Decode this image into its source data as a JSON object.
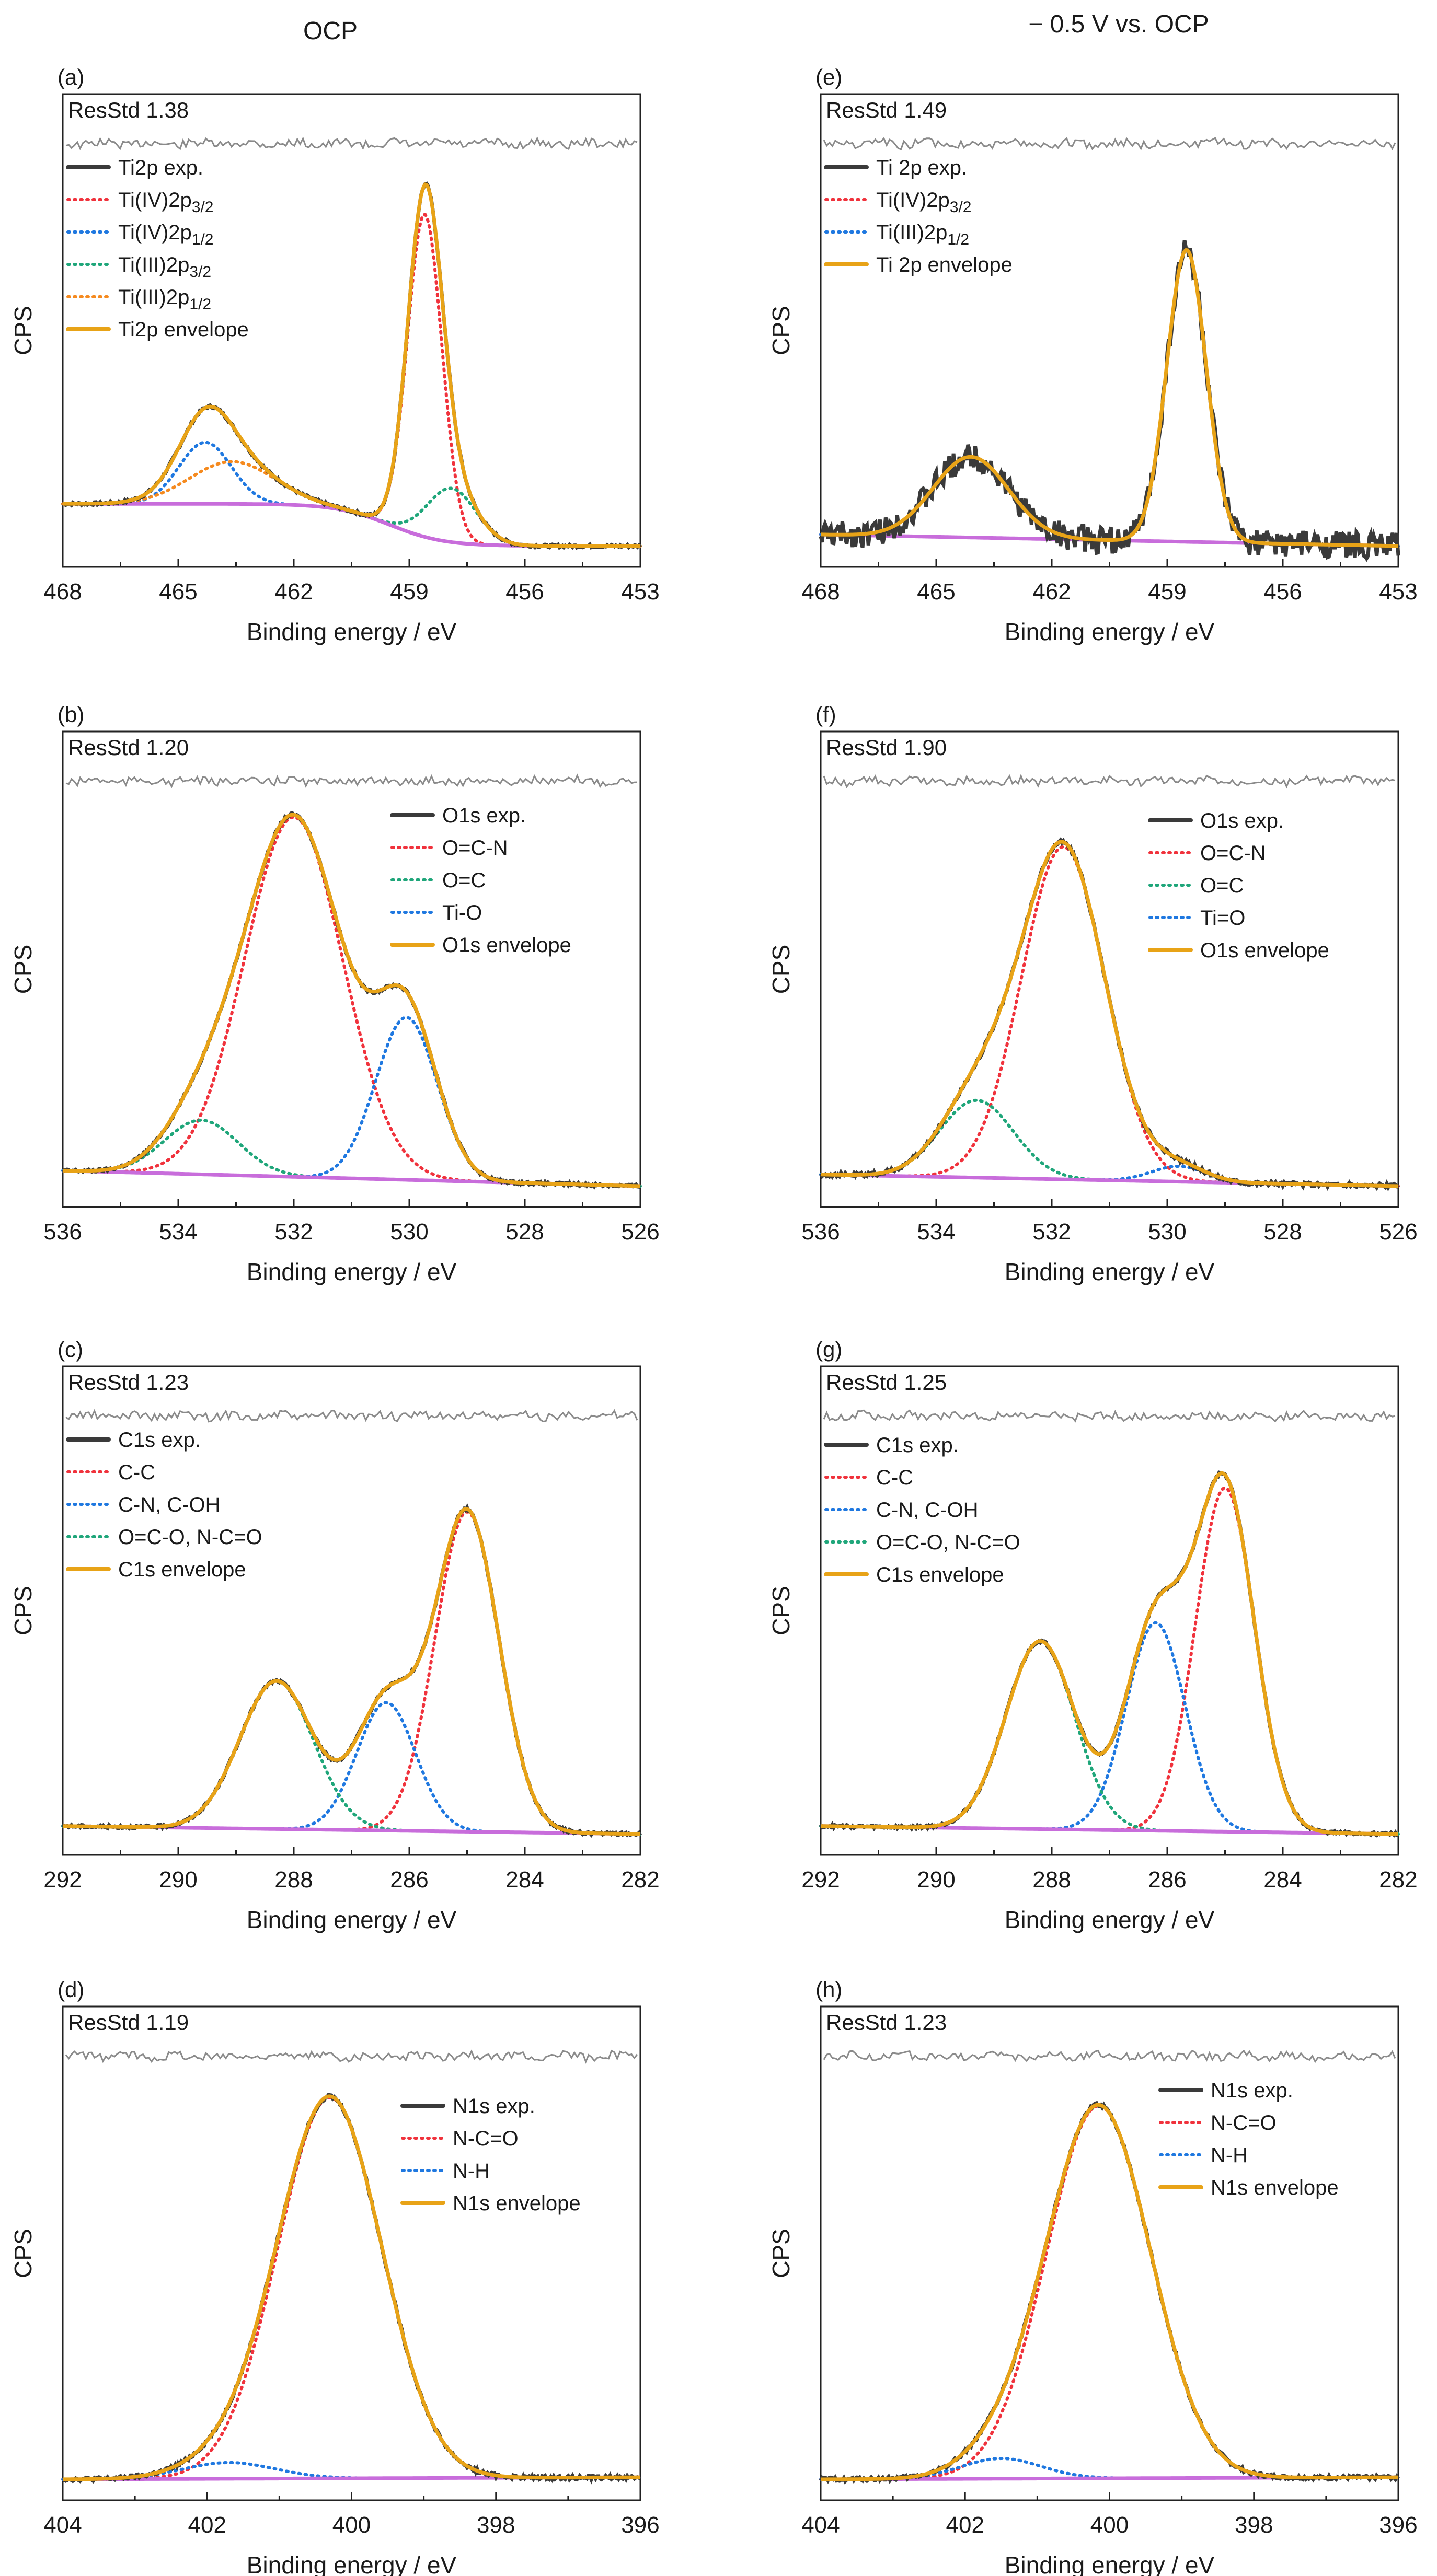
{
  "column_titles": [
    "OCP",
    "− 0.5 V vs. OCP"
  ],
  "colors": {
    "exp": "#3a3a3a",
    "envelope": "#e8a317",
    "background": "#c86ddb",
    "residual": "#8a8a8a",
    "red": "#f0323c",
    "blue": "#1f78e0",
    "green": "#1fa67a",
    "orange": "#f58a1f"
  },
  "chart_data": [
    {
      "panel": "(a)",
      "type": "line",
      "resstd": "ResStd 1.38",
      "xlabel": "Binding energy / eV",
      "ylabel": "CPS",
      "xlim": [
        468,
        453
      ],
      "xticks": [
        "468",
        "465",
        "462",
        "459",
        "456",
        "453"
      ],
      "legend_placement": "top-left",
      "legend": [
        {
          "label": "Ti2p exp.",
          "sub": "",
          "style": "solid-exp"
        },
        {
          "label": "Ti(IV)2p",
          "sub": "3/2",
          "style": "dot-red"
        },
        {
          "label": "Ti(IV)2p",
          "sub": "1/2",
          "style": "dot-blue"
        },
        {
          "label": "Ti(III)2p",
          "sub": "3/2",
          "style": "dot-green"
        },
        {
          "label": "Ti(III)2p",
          "sub": "1/2",
          "style": "dot-orange"
        },
        {
          "label": "Ti2p envelope",
          "sub": "",
          "style": "solid-env"
        }
      ],
      "background": {
        "type": "step",
        "high": 0.11,
        "low": 0.0,
        "center": 459.5,
        "width": 0.7
      },
      "peaks": [
        {
          "name": "Ti(IV)2p3/2",
          "center": 458.6,
          "height": 0.84,
          "fwhm": 1.05,
          "color": "red"
        },
        {
          "name": "Ti(IV)2p1/2",
          "center": 464.3,
          "height": 0.16,
          "fwhm": 1.6,
          "color": "blue"
        },
        {
          "name": "Ti(III)2p3/2",
          "center": 457.9,
          "height": 0.14,
          "fwhm": 1.5,
          "color": "green"
        },
        {
          "name": "Ti(III)2p1/2",
          "center": 463.6,
          "height": 0.11,
          "fwhm": 2.6,
          "color": "orange"
        }
      ],
      "noise": 0.004
    },
    {
      "panel": "(b)",
      "type": "line",
      "resstd": "ResStd 1.20",
      "xlabel": "Binding energy / eV",
      "ylabel": "CPS",
      "xlim": [
        536,
        526
      ],
      "xticks": [
        "536",
        "534",
        "532",
        "530",
        "528",
        "526"
      ],
      "legend_placement": "top-right",
      "legend": [
        {
          "label": "O1s exp.",
          "sub": "",
          "style": "solid-exp"
        },
        {
          "label": "O=C-N",
          "sub": "",
          "style": "dot-red"
        },
        {
          "label": "O=C",
          "sub": "",
          "style": "dot-green"
        },
        {
          "label": "Ti-O",
          "sub": "",
          "style": "dot-blue"
        },
        {
          "label": "O1s envelope",
          "sub": "",
          "style": "solid-env"
        }
      ],
      "background": {
        "type": "linear",
        "left": 0.04,
        "right": 0.0
      },
      "peaks": [
        {
          "name": "O=C-N",
          "center": 532.0,
          "height": 0.93,
          "fwhm": 2.0,
          "color": "red"
        },
        {
          "name": "O=C",
          "center": 533.6,
          "height": 0.14,
          "fwhm": 1.5,
          "color": "green"
        },
        {
          "name": "Ti-O",
          "center": 530.05,
          "height": 0.42,
          "fwhm": 1.25,
          "color": "blue"
        }
      ],
      "noise": 0.004
    },
    {
      "panel": "(c)",
      "type": "line",
      "resstd": "ResStd 1.23",
      "xlabel": "Binding energy / eV",
      "ylabel": "CPS",
      "xlim": [
        292,
        282
      ],
      "xticks": [
        "292",
        "290",
        "288",
        "286",
        "284",
        "282"
      ],
      "legend_placement": "top-left",
      "legend": [
        {
          "label": "C1s exp.",
          "sub": "",
          "style": "solid-exp"
        },
        {
          "label": "C-C",
          "sub": "",
          "style": "dot-red"
        },
        {
          "label": "C-N, C-OH",
          "sub": "",
          "style": "dot-blue"
        },
        {
          "label": "O=C-O, N-C=O",
          "sub": "",
          "style": "dot-green"
        },
        {
          "label": "C1s envelope",
          "sub": "",
          "style": "solid-env"
        }
      ],
      "background": {
        "type": "linear",
        "left": 0.02,
        "right": 0.0
      },
      "peaks": [
        {
          "name": "C-C",
          "center": 285.0,
          "height": 0.8,
          "fwhm": 1.3,
          "color": "red"
        },
        {
          "name": "C-N, C-OH",
          "center": 286.4,
          "height": 0.32,
          "fwhm": 1.2,
          "color": "blue"
        },
        {
          "name": "O=C-O, N-C=O",
          "center": 288.3,
          "height": 0.37,
          "fwhm": 1.5,
          "color": "green"
        }
      ],
      "noise": 0.004
    },
    {
      "panel": "(d)",
      "type": "line",
      "resstd": "ResStd 1.19",
      "xlabel": "Binding energy / eV",
      "ylabel": "CPS",
      "xlim": [
        404,
        396
      ],
      "xticks": [
        "404",
        "402",
        "400",
        "398",
        "396"
      ],
      "legend_placement": "top-right",
      "legend": [
        {
          "label": "N1s exp.",
          "sub": "",
          "style": "solid-exp"
        },
        {
          "label": "N-C=O",
          "sub": "",
          "style": "dot-red"
        },
        {
          "label": "N-H",
          "sub": "",
          "style": "dot-blue"
        },
        {
          "label": "N1s envelope",
          "sub": "",
          "style": "solid-env"
        }
      ],
      "background": {
        "type": "linear",
        "left": 0.0,
        "right": 0.005
      },
      "peaks": [
        {
          "name": "N-C=O",
          "center": 400.3,
          "height": 0.94,
          "fwhm": 1.7,
          "color": "red"
        },
        {
          "name": "N-H",
          "center": 401.7,
          "height": 0.04,
          "fwhm": 1.5,
          "color": "blue"
        }
      ],
      "noise": 0.005
    },
    {
      "panel": "(e)",
      "type": "line",
      "resstd": "ResStd 1.49",
      "xlabel": "Binding energy / eV",
      "ylabel": "CPS",
      "xlim": [
        468,
        453
      ],
      "xticks": [
        "468",
        "465",
        "462",
        "459",
        "456",
        "453"
      ],
      "legend_placement": "top-left",
      "legend": [
        {
          "label": "Ti 2p exp.",
          "sub": "",
          "style": "solid-exp"
        },
        {
          "label": "Ti(IV)2p",
          "sub": "3/2",
          "style": "dot-red"
        },
        {
          "label": "Ti(III)2p",
          "sub": "1/2",
          "style": "dot-blue"
        },
        {
          "label": "Ti 2p envelope",
          "sub": "",
          "style": "solid-env"
        }
      ],
      "background": {
        "type": "linear",
        "left": 0.03,
        "right": 0.0
      },
      "peaks": [
        {
          "name": "Ti(IV)2p3/2",
          "center": 458.5,
          "height": 0.76,
          "fwhm": 1.2,
          "color": "red"
        },
        {
          "name": "Ti(III)2p1/2",
          "center": 464.1,
          "height": 0.21,
          "fwhm": 2.3,
          "color": "blue"
        }
      ],
      "noise": 0.035
    },
    {
      "panel": "(f)",
      "type": "line",
      "resstd": "ResStd 1.90",
      "xlabel": "Binding energy / eV",
      "ylabel": "CPS",
      "xlim": [
        536,
        526
      ],
      "xticks": [
        "536",
        "534",
        "532",
        "530",
        "528",
        "526"
      ],
      "legend_placement": "top-right",
      "legend": [
        {
          "label": "O1s exp.",
          "sub": "",
          "style": "solid-exp"
        },
        {
          "label": "O=C-N",
          "sub": "",
          "style": "dot-red"
        },
        {
          "label": "O=C",
          "sub": "",
          "style": "dot-green"
        },
        {
          "label": "Ti=O",
          "sub": "",
          "style": "dot-blue"
        },
        {
          "label": "O1s envelope",
          "sub": "",
          "style": "solid-env"
        }
      ],
      "background": {
        "type": "linear",
        "left": 0.03,
        "right": 0.0
      },
      "peaks": [
        {
          "name": "O=C-N",
          "center": 531.8,
          "height": 0.86,
          "fwhm": 1.7,
          "color": "red"
        },
        {
          "name": "O=C",
          "center": 533.3,
          "height": 0.2,
          "fwhm": 1.5,
          "color": "green"
        },
        {
          "name": "Ti=O",
          "center": 529.8,
          "height": 0.04,
          "fwhm": 1.1,
          "color": "blue"
        }
      ],
      "noise": 0.006
    },
    {
      "panel": "(g)",
      "type": "line",
      "resstd": "ResStd 1.25",
      "xlabel": "Binding energy / eV",
      "ylabel": "CPS",
      "xlim": [
        292,
        282
      ],
      "xticks": [
        "292",
        "290",
        "288",
        "286",
        "284",
        "282"
      ],
      "legend_placement": "top-left",
      "legend": [
        {
          "label": "C1s exp.",
          "sub": "",
          "style": "solid-exp"
        },
        {
          "label": "C-C",
          "sub": "",
          "style": "dot-red"
        },
        {
          "label": "C-N, C-OH",
          "sub": "",
          "style": "dot-blue"
        },
        {
          "label": "O=C-O, N-C=O",
          "sub": "",
          "style": "dot-green"
        },
        {
          "label": "C1s envelope",
          "sub": "",
          "style": "solid-env"
        }
      ],
      "background": {
        "type": "linear",
        "left": 0.02,
        "right": 0.0
      },
      "peaks": [
        {
          "name": "C-C",
          "center": 285.0,
          "height": 0.86,
          "fwhm": 1.2,
          "color": "red"
        },
        {
          "name": "C-N, C-OH",
          "center": 286.2,
          "height": 0.52,
          "fwhm": 1.2,
          "color": "blue"
        },
        {
          "name": "O=C-O, N-C=O",
          "center": 288.2,
          "height": 0.47,
          "fwhm": 1.4,
          "color": "green"
        }
      ],
      "noise": 0.004
    },
    {
      "panel": "(h)",
      "type": "line",
      "resstd": "ResStd 1.23",
      "xlabel": "Binding energy / eV",
      "ylabel": "CPS",
      "xlim": [
        404,
        396
      ],
      "xticks": [
        "404",
        "402",
        "400",
        "398",
        "396"
      ],
      "legend_placement": "top-right",
      "legend": [
        {
          "label": "N1s exp.",
          "sub": "",
          "style": "solid-exp"
        },
        {
          "label": "N-C=O",
          "sub": "",
          "style": "dot-red"
        },
        {
          "label": "N-H",
          "sub": "",
          "style": "dot-blue"
        },
        {
          "label": "N1s envelope",
          "sub": "",
          "style": "solid-env"
        }
      ],
      "background": {
        "type": "linear",
        "left": 0.0,
        "right": 0.005
      },
      "peaks": [
        {
          "name": "N-C=O",
          "center": 400.15,
          "height": 0.92,
          "fwhm": 1.7,
          "color": "red"
        },
        {
          "name": "N-H",
          "center": 401.5,
          "height": 0.05,
          "fwhm": 1.3,
          "color": "blue"
        }
      ],
      "noise": 0.005
    }
  ]
}
